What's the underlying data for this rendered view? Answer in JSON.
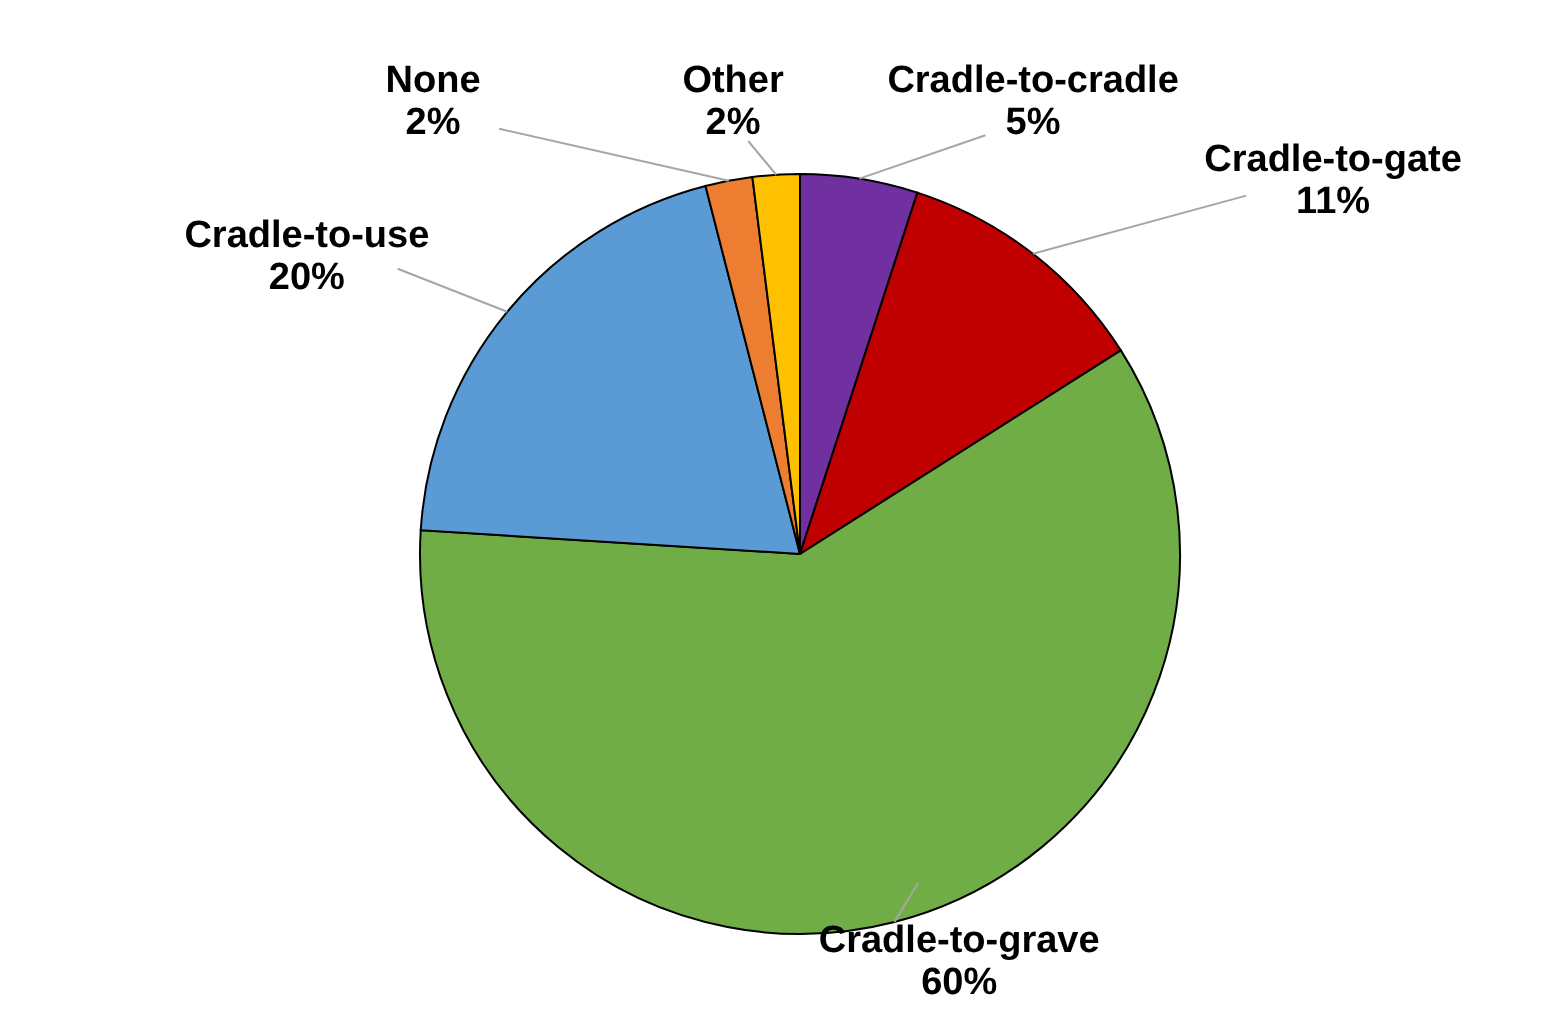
{
  "chart_data": {
    "type": "pie",
    "categories": [
      "Cradle-to-cradle",
      "Cradle-to-gate",
      "Cradle-to-grave",
      "Cradle-to-use",
      "None",
      "Other"
    ],
    "values": [
      5,
      11,
      60,
      20,
      2,
      2
    ],
    "value_labels": [
      "5%",
      "11%",
      "60%",
      "20%",
      "2%",
      "2%"
    ],
    "colors": [
      "#7030a0",
      "#c00000",
      "#70ad47",
      "#5b9bd5",
      "#ed7d31",
      "#ffc000"
    ]
  }
}
